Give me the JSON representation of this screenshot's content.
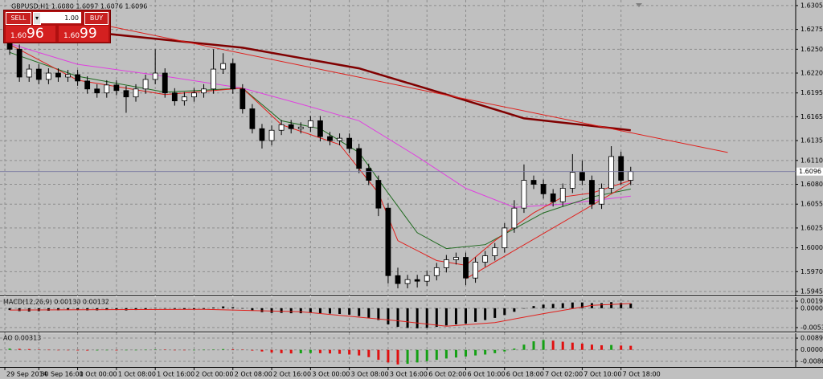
{
  "chart_data": {
    "type": "candlestick",
    "title": "GBPUSD,H1 1.6080 1.6097 1.6076 1.6096",
    "up_color": "#ffffff",
    "down_color": "#000000",
    "grid": true,
    "xlim": [
      -1,
      81
    ],
    "xticks": [
      {
        "value": -0.5,
        "label": "29 Sep 2014"
      },
      {
        "value": 3,
        "label": "30 Sep 16:00"
      },
      {
        "value": 7,
        "label": "1 Oct 00:00"
      },
      {
        "value": 11,
        "label": "1 Oct 08:00"
      },
      {
        "value": 15,
        "label": "1 Oct 16:00"
      },
      {
        "value": 19,
        "label": "2 Oct 00:00"
      },
      {
        "value": 23,
        "label": "2 Oct 08:00"
      },
      {
        "value": 27,
        "label": "2 Oct 16:00"
      },
      {
        "value": 31,
        "label": "3 Oct 00:00"
      },
      {
        "value": 35,
        "label": "3 Oct 08:00"
      },
      {
        "value": 39,
        "label": "3 Oct 16:00"
      },
      {
        "value": 43,
        "label": "6 Oct 02:00"
      },
      {
        "value": 47,
        "label": "6 Oct 10:00"
      },
      {
        "value": 51,
        "label": "6 Oct 18:00"
      },
      {
        "value": 55,
        "label": "7 Oct 02:00"
      },
      {
        "value": 59,
        "label": "7 Oct 10:00"
      },
      {
        "value": 63,
        "label": "7 Oct 18:00"
      }
    ],
    "ylim": [
      1.594,
      1.6312
    ],
    "yticks": [
      1.6305,
      1.6275,
      {
        "value": 1.625,
        "label": "1.6250"
      },
      {
        "value": 1.622,
        "label": "1.6220"
      },
      1.6195,
      1.6165,
      1.6135,
      {
        "value": 1.611,
        "label": "1.6110"
      },
      {
        "value": 1.608,
        "label": "1.6080"
      },
      1.6055,
      1.6025,
      {
        "value": 1.6,
        "label": "1.6000"
      },
      {
        "value": 1.597,
        "label": "1.5970"
      },
      1.5945
    ],
    "current_price": 1.6096,
    "ohlc": [
      [
        1.6265,
        1.6272,
        1.6243,
        1.625
      ],
      [
        1.625,
        1.6256,
        1.6209,
        1.6215
      ],
      [
        1.6215,
        1.6231,
        1.6209,
        1.6225
      ],
      [
        1.6225,
        1.6231,
        1.6206,
        1.6212
      ],
      [
        1.6212,
        1.6226,
        1.6206,
        1.622
      ],
      [
        1.622,
        1.6226,
        1.6209,
        1.6215
      ],
      [
        1.6215,
        1.6224,
        1.6209,
        1.6218
      ],
      [
        1.6218,
        1.6224,
        1.6204,
        1.621
      ],
      [
        1.621,
        1.6216,
        1.6194,
        1.62
      ],
      [
        1.62,
        1.6206,
        1.6189,
        1.6195
      ],
      [
        1.6195,
        1.6211,
        1.6189,
        1.6205
      ],
      [
        1.6205,
        1.6211,
        1.6192,
        1.6198
      ],
      [
        1.6198,
        1.6204,
        1.617,
        1.619
      ],
      [
        1.619,
        1.6206,
        1.6184,
        1.62
      ],
      [
        1.62,
        1.6218,
        1.6194,
        1.6212
      ],
      [
        1.6212,
        1.625,
        1.6206,
        1.622
      ],
      [
        1.622,
        1.6226,
        1.6189,
        1.6195
      ],
      [
        1.6195,
        1.6201,
        1.6179,
        1.6185
      ],
      [
        1.6185,
        1.6196,
        1.6179,
        1.619
      ],
      [
        1.619,
        1.6201,
        1.6184,
        1.6195
      ],
      [
        1.6195,
        1.6206,
        1.6189,
        1.62
      ],
      [
        1.62,
        1.625,
        1.6194,
        1.6225
      ],
      [
        1.6225,
        1.6245,
        1.6219,
        1.6232
      ],
      [
        1.6232,
        1.6238,
        1.6194,
        1.62
      ],
      [
        1.62,
        1.6206,
        1.6169,
        1.6175
      ],
      [
        1.6175,
        1.6181,
        1.6144,
        1.615
      ],
      [
        1.615,
        1.6156,
        1.6125,
        1.6135
      ],
      [
        1.6135,
        1.6154,
        1.6129,
        1.6148
      ],
      [
        1.6148,
        1.6161,
        1.6142,
        1.6155
      ],
      [
        1.6155,
        1.6161,
        1.6144,
        1.615
      ],
      [
        1.615,
        1.6158,
        1.6144,
        1.6152
      ],
      [
        1.6152,
        1.6166,
        1.6146,
        1.616
      ],
      [
        1.616,
        1.6166,
        1.6134,
        1.614
      ],
      [
        1.614,
        1.6146,
        1.6129,
        1.6135
      ],
      [
        1.6135,
        1.6144,
        1.6129,
        1.6138
      ],
      [
        1.6138,
        1.6144,
        1.6119,
        1.6125
      ],
      [
        1.6125,
        1.6131,
        1.6094,
        1.61
      ],
      [
        1.61,
        1.6106,
        1.6079,
        1.6085
      ],
      [
        1.6085,
        1.6091,
        1.604,
        1.605
      ],
      [
        1.605,
        1.6056,
        1.5955,
        1.5965
      ],
      [
        1.5965,
        1.5975,
        1.5949,
        1.5955
      ],
      [
        1.5955,
        1.5966,
        1.5949,
        1.596
      ],
      [
        1.596,
        1.5966,
        1.595,
        1.5958
      ],
      [
        1.5958,
        1.5971,
        1.5952,
        1.5965
      ],
      [
        1.5965,
        1.5981,
        1.5959,
        1.5975
      ],
      [
        1.5975,
        1.5991,
        1.5969,
        1.5985
      ],
      [
        1.5985,
        1.5994,
        1.5979,
        1.5988
      ],
      [
        1.5988,
        1.5994,
        1.5953,
        1.5962
      ],
      [
        1.5962,
        1.5988,
        1.5956,
        1.5982
      ],
      [
        1.5982,
        1.5996,
        1.5976,
        1.599
      ],
      [
        1.599,
        1.6006,
        1.5984,
        1.6
      ],
      [
        1.6,
        1.6031,
        1.5994,
        1.6025
      ],
      [
        1.6025,
        1.606,
        1.6019,
        1.605
      ],
      [
        1.605,
        1.6105,
        1.6044,
        1.6085
      ],
      [
        1.6085,
        1.6091,
        1.6074,
        1.608
      ],
      [
        1.608,
        1.6086,
        1.6062,
        1.6068
      ],
      [
        1.6068,
        1.6074,
        1.6052,
        1.6058
      ],
      [
        1.6058,
        1.6081,
        1.6052,
        1.6075
      ],
      [
        1.6075,
        1.6118,
        1.6069,
        1.6095
      ],
      [
        1.6095,
        1.611,
        1.6079,
        1.6085
      ],
      [
        1.6085,
        1.6091,
        1.6049,
        1.6055
      ],
      [
        1.6055,
        1.6081,
        1.6049,
        1.6075
      ],
      [
        1.6075,
        1.6128,
        1.6069,
        1.6115
      ],
      [
        1.6115,
        1.6121,
        1.6079,
        1.6085
      ],
      [
        1.6085,
        1.6102,
        1.6079,
        1.6096
      ]
    ],
    "lines": [
      {
        "color": "#800000",
        "width": 2.5,
        "x": [
          0,
          4,
          24,
          36,
          45,
          53,
          64
        ],
        "values": [
          1.6285,
          1.6277,
          1.6252,
          1.6226,
          1.6193,
          1.6163,
          1.6148
        ]
      },
      {
        "color": "#e0201c",
        "width": 1,
        "x": [
          7,
          74
        ],
        "values": [
          1.6287,
          1.612
        ]
      },
      {
        "color": "#e040e0",
        "width": 1,
        "x": [
          0,
          7,
          16,
          24,
          30,
          36,
          42,
          47,
          52,
          57,
          64
        ],
        "values": [
          1.6257,
          1.6231,
          1.6216,
          1.6201,
          1.6181,
          1.616,
          1.6115,
          1.6075,
          1.6051,
          1.6055,
          1.6065
        ]
      },
      {
        "color": "#1f6a1f",
        "width": 1,
        "x": [
          0,
          7,
          16,
          24,
          28,
          32,
          36,
          39,
          42,
          45,
          49,
          52,
          55,
          60,
          64
        ],
        "values": [
          1.6246,
          1.6216,
          1.6196,
          1.6201,
          1.616,
          1.615,
          1.612,
          1.6069,
          1.6019,
          1.5999,
          1.6004,
          1.6024,
          1.6044,
          1.6064,
          1.6074
        ]
      },
      {
        "color": "#e0201c",
        "width": 1,
        "x": [
          0,
          7,
          16,
          24,
          28,
          34,
          38,
          40,
          44,
          47,
          50,
          54,
          57,
          60,
          64
        ],
        "values": [
          1.6256,
          1.6211,
          1.6193,
          1.6201,
          1.6155,
          1.613,
          1.6069,
          1.6009,
          1.5984,
          1.5978,
          1.6009,
          1.6044,
          1.6064,
          1.6069,
          1.6085
        ]
      },
      {
        "color": "#e0201c",
        "width": 1,
        "x": [
          47,
          64
        ],
        "values": [
          1.5961,
          1.6082
        ]
      }
    ],
    "macd": {
      "title": "MACD(12,26,9) 0.00130 0.00132",
      "color": "#000000",
      "ylim": [
        -0.0063,
        0.0031
      ],
      "yticks": [
        0.00198,
        {
          "value": 0,
          "label": "0.00000"
        },
        -0.00539
      ],
      "values": [
        -0.0005,
        -0.0008,
        -0.0009,
        -0.0008,
        -0.0007,
        -0.0006,
        -0.0005,
        -0.0005,
        -0.0006,
        -0.0006,
        -0.0005,
        -0.0005,
        -0.0006,
        -0.0005,
        -0.0003,
        0.0001,
        0.0,
        -0.0002,
        -0.0003,
        -0.0003,
        -0.0002,
        0.0002,
        0.0005,
        0.0003,
        -0.0001,
        -0.0006,
        -0.0011,
        -0.0013,
        -0.0013,
        -0.0014,
        -0.0014,
        -0.0013,
        -0.0014,
        -0.0015,
        -0.0016,
        -0.0018,
        -0.0022,
        -0.0027,
        -0.0033,
        -0.0045,
        -0.0052,
        -0.0055,
        -0.0056,
        -0.0055,
        -0.0052,
        -0.0048,
        -0.0045,
        -0.0043,
        -0.0038,
        -0.0033,
        -0.0027,
        -0.0019,
        -0.001,
        0.0,
        0.0006,
        0.001,
        0.0012,
        0.0014,
        0.0016,
        0.0016,
        0.0014,
        0.0014,
        0.0017,
        0.0015,
        0.0013
      ],
      "signal": {
        "color": "#e0201c",
        "x": [
          0,
          20,
          30,
          40,
          45,
          50,
          55,
          60,
          64
        ],
        "values": [
          -0.0005,
          -0.0003,
          -0.001,
          -0.0035,
          -0.005,
          -0.004,
          -0.0015,
          0.0008,
          0.0013
        ]
      }
    },
    "ao": {
      "title": "AO 0.00313",
      "up_color": "#14a014",
      "down_color": "#e01010",
      "ylim": [
        -0.0123,
        0.0126
      ],
      "yticks": [
        0.00892,
        {
          "value": 0,
          "label": "0.00000"
        },
        -0.00863
      ],
      "values": [
        0.001,
        0.0008,
        0.0006,
        0.0003,
        0.0001,
        -0.0001,
        -0.0003,
        -0.0004,
        -0.0005,
        -0.0004,
        -0.0003,
        -0.0004,
        -0.0003,
        -0.0001,
        0.0001,
        0.0003,
        0.0002,
        0.0,
        -0.0002,
        -0.0001,
        0.0001,
        0.0003,
        0.0006,
        0.0005,
        0.0002,
        -0.0005,
        -0.0012,
        -0.002,
        -0.0025,
        -0.0027,
        -0.0026,
        -0.0024,
        -0.0025,
        -0.0027,
        -0.003,
        -0.0035,
        -0.0042,
        -0.0055,
        -0.0075,
        -0.0095,
        -0.011,
        -0.0105,
        -0.0095,
        -0.0085,
        -0.0075,
        -0.0065,
        -0.0058,
        -0.005,
        -0.0042,
        -0.0035,
        -0.0025,
        -0.0012,
        0.001,
        0.004,
        0.0065,
        0.0075,
        0.007,
        0.0062,
        0.0055,
        0.0048,
        0.004,
        0.0035,
        0.0037,
        0.0033,
        0.0031
      ]
    }
  },
  "trade_panel": {
    "sell": "SELL",
    "lot": "1.00",
    "buy": "BUY",
    "bid_prefix": "1.60",
    "bid_big": "96",
    "ask_prefix": "1.60",
    "ask_big": "99"
  }
}
